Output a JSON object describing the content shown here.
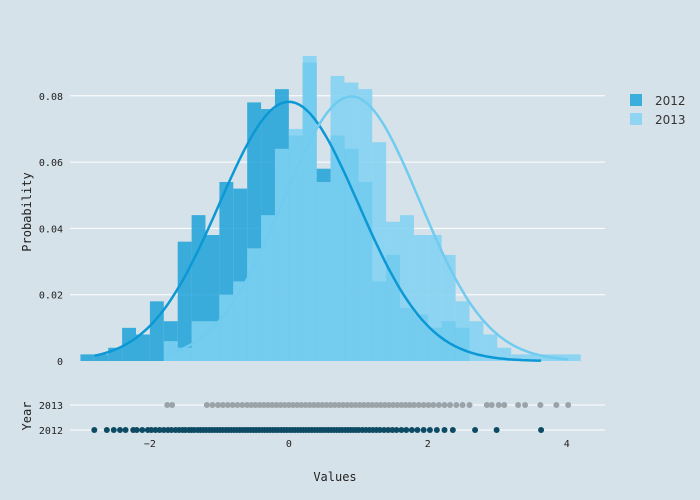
{
  "chart_data": {
    "type": "histogram-distplot",
    "xlabel": "Values",
    "ylabel": "Probability",
    "rug_label": "Year",
    "xlim": [
      -3.15,
      4.55
    ],
    "ylim": [
      0,
      0.092
    ],
    "x_ticks": [
      -2,
      0,
      2,
      4
    ],
    "x_tick_labels": [
      "−2",
      "0",
      "2",
      "4"
    ],
    "y_ticks": [
      0,
      0.02,
      0.04,
      0.06,
      0.08
    ],
    "y_tick_labels": [
      "0",
      "0.02",
      "0.04",
      "0.06",
      "0.08"
    ],
    "rug_tick_labels": [
      "2013",
      "2012"
    ],
    "legend": {
      "placement": "top-right",
      "entries": [
        "2012",
        "2013"
      ]
    },
    "grid": true,
    "bin_width": 0.2,
    "series": [
      {
        "name": "2012",
        "color": "#1fa2d8",
        "bin_start": -3.0,
        "probabilities": [
          0.002,
          0.002,
          0.004,
          0.01,
          0.008,
          0.018,
          0.012,
          0.036,
          0.044,
          0.038,
          0.054,
          0.052,
          0.078,
          0.076,
          0.082,
          0.068,
          0.09,
          0.058,
          0.068,
          0.064,
          0.054,
          0.024,
          0.032,
          0.016,
          0.014,
          0.01,
          0.012,
          0.01
        ],
        "curve": {
          "mean": 0.0,
          "std": 1.0
        },
        "rug": [
          -2.8,
          -2.62,
          -2.52,
          -2.43,
          -2.35,
          -2.24,
          -2.19,
          -2.11,
          -2.03,
          -1.98,
          -1.92,
          -1.86,
          -1.8,
          -1.74,
          -1.69,
          -1.63,
          -1.58,
          -1.53,
          -1.49,
          -1.44,
          -1.4,
          -1.36,
          -1.31,
          -1.27,
          -1.23,
          -1.19,
          -1.15,
          -1.11,
          -1.07,
          -1.03,
          -0.99,
          -0.95,
          -0.91,
          -0.87,
          -0.83,
          -0.79,
          -0.75,
          -0.71,
          -0.67,
          -0.63,
          -0.59,
          -0.55,
          -0.51,
          -0.47,
          -0.43,
          -0.39,
          -0.35,
          -0.31,
          -0.27,
          -0.23,
          -0.19,
          -0.15,
          -0.11,
          -0.07,
          -0.03,
          0.01,
          0.05,
          0.09,
          0.13,
          0.17,
          0.21,
          0.25,
          0.29,
          0.33,
          0.37,
          0.41,
          0.45,
          0.49,
          0.53,
          0.57,
          0.61,
          0.65,
          0.69,
          0.73,
          0.77,
          0.81,
          0.85,
          0.89,
          0.93,
          0.97,
          1.01,
          1.06,
          1.11,
          1.16,
          1.21,
          1.26,
          1.31,
          1.37,
          1.43,
          1.49,
          1.55,
          1.62,
          1.69,
          1.77,
          1.85,
          1.94,
          2.03,
          2.13,
          2.24,
          2.36,
          2.68,
          2.99,
          3.63
        ]
      },
      {
        "name": "2013",
        "color": "#7fd1f2",
        "bin_start": -1.8,
        "probabilities": [
          0.006,
          0.004,
          0.012,
          0.012,
          0.02,
          0.024,
          0.034,
          0.044,
          0.064,
          0.07,
          0.092,
          0.054,
          0.086,
          0.084,
          0.082,
          0.066,
          0.042,
          0.044,
          0.038,
          0.038,
          0.032,
          0.018,
          0.012,
          0.008,
          0.004,
          0.002,
          0.002,
          0.002,
          0.002,
          0.002
        ],
        "curve": {
          "mean": 0.9,
          "std": 0.98
        },
        "rug": [
          -1.75,
          -1.68,
          -1.18,
          -1.1,
          -1.02,
          -0.95,
          -0.88,
          -0.81,
          -0.74,
          -0.67,
          -0.6,
          -0.54,
          -0.48,
          -0.42,
          -0.36,
          -0.3,
          -0.24,
          -0.18,
          -0.12,
          -0.06,
          0.0,
          0.06,
          0.12,
          0.18,
          0.24,
          0.3,
          0.36,
          0.42,
          0.48,
          0.54,
          0.6,
          0.66,
          0.72,
          0.78,
          0.84,
          0.9,
          0.96,
          1.02,
          1.08,
          1.14,
          1.2,
          1.26,
          1.32,
          1.38,
          1.44,
          1.5,
          1.56,
          1.62,
          1.68,
          1.74,
          1.8,
          1.87,
          1.94,
          2.01,
          2.08,
          2.16,
          2.24,
          2.32,
          2.41,
          2.5,
          2.6,
          2.85,
          2.92,
          3.02,
          3.1,
          3.3,
          3.4,
          3.62,
          3.85,
          4.02
        ]
      }
    ]
  }
}
